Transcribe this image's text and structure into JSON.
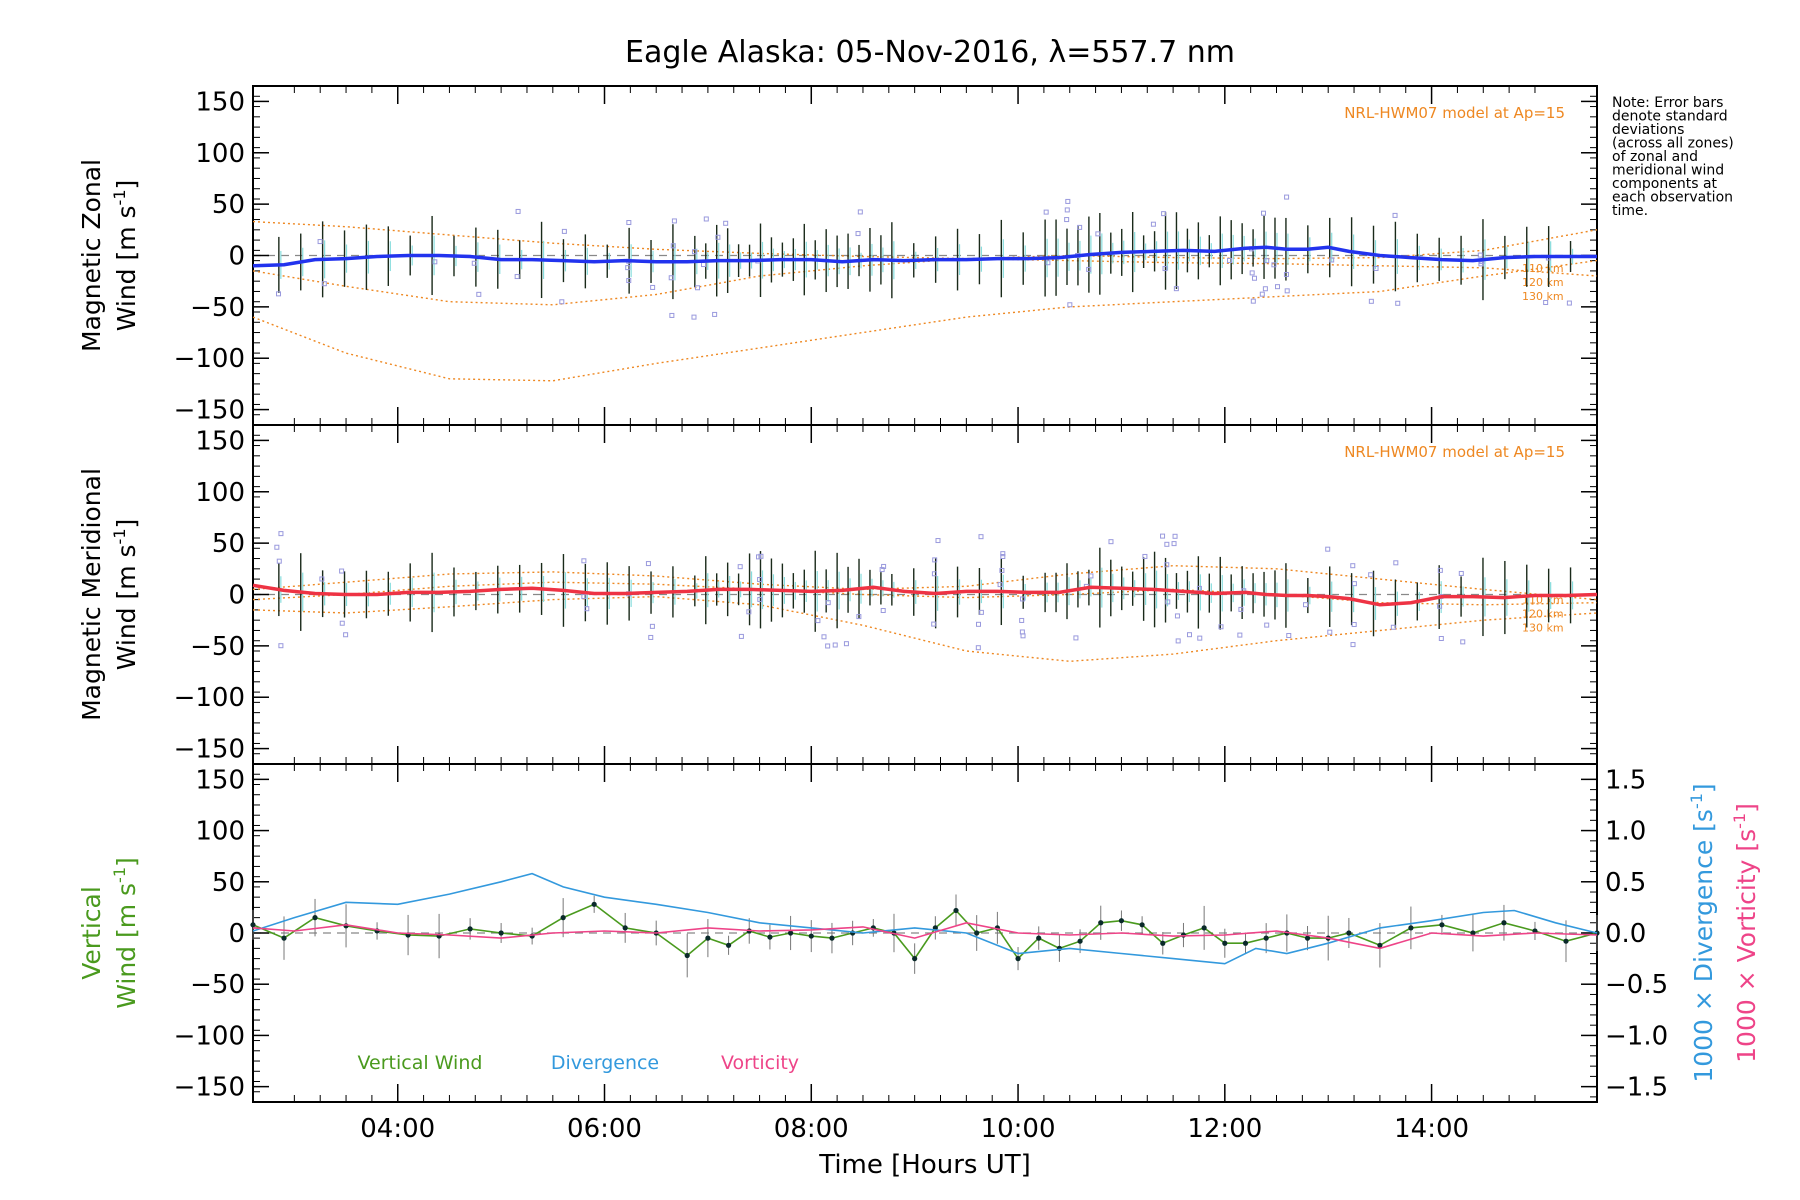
{
  "chart_data": [
    {
      "type": "line",
      "title": "Eagle Alaska: 05-Nov-2016, λ=557.7 nm",
      "panel": "zonal",
      "ylabel": [
        "Magnetic Zonal",
        "Wind [m s",
        "-1",
        "]"
      ],
      "ylim": [
        -165,
        165
      ],
      "yticks": [
        150,
        100,
        50,
        0,
        -50,
        -100,
        -150
      ],
      "xlim": [
        2.6,
        15.6
      ],
      "model_label": "NRL-HWM07 model at Ap=15",
      "altitude_labels": [
        "110 km",
        "120 km",
        "130 km"
      ],
      "series": [
        {
          "color": "#2233ee",
          "x": [
            2.6,
            2.9,
            3.2,
            3.5,
            3.8,
            4.1,
            4.4,
            4.7,
            5.0,
            5.3,
            5.6,
            5.9,
            6.2,
            6.5,
            6.8,
            7.1,
            7.4,
            7.7,
            8.0,
            8.3,
            8.6,
            8.9,
            9.2,
            9.5,
            9.8,
            10.1,
            10.4,
            10.7,
            11.0,
            11.3,
            11.6,
            11.9,
            12.2,
            12.4,
            12.6,
            12.8,
            13.0,
            13.2,
            13.5,
            13.8,
            14.1,
            14.4,
            14.7,
            15.0,
            15.3,
            15.6
          ],
          "y": [
            -10,
            -9,
            -4,
            -3,
            -1,
            0,
            0,
            -1,
            -4,
            -4,
            -5,
            -6,
            -5,
            -6,
            -6,
            -5,
            -5,
            -4,
            -4,
            -6,
            -4,
            -5,
            -4,
            -4,
            -3,
            -3,
            -2,
            1,
            3,
            4,
            5,
            4,
            7,
            8,
            6,
            6,
            8,
            4,
            0,
            -2,
            -4,
            -5,
            -2,
            -1,
            -1,
            -1
          ]
        }
      ],
      "model_curves": [
        {
          "name": "110 km",
          "x": [
            2.6,
            3.5,
            4.5,
            5.5,
            6.5,
            7.5,
            8.5,
            9.5,
            10.5,
            11.5,
            12.5,
            13.5,
            14.5,
            15.6
          ],
          "y": [
            33,
            28,
            20,
            12,
            6,
            2,
            -1,
            -3,
            -5,
            -7,
            -8,
            -10,
            -12,
            -20
          ]
        },
        {
          "name": "120 km",
          "x": [
            2.6,
            3.5,
            4.5,
            5.5,
            6.5,
            7.5,
            8.5,
            9.5,
            10.5,
            11.5,
            12.5,
            13.5,
            14.5,
            15.6
          ],
          "y": [
            -15,
            -30,
            -45,
            -48,
            -38,
            -20,
            -10,
            -3,
            0,
            -2,
            -3,
            -2,
            5,
            25
          ]
        },
        {
          "name": "130 km",
          "x": [
            2.6,
            3.5,
            4.5,
            5.5,
            6.5,
            7.5,
            8.5,
            9.5,
            10.5,
            11.5,
            12.5,
            13.5,
            14.5,
            15.6
          ],
          "y": [
            -60,
            -95,
            -120,
            -122,
            -105,
            -90,
            -75,
            -60,
            -50,
            -45,
            -40,
            -35,
            -20,
            -5
          ]
        }
      ]
    },
    {
      "type": "line",
      "panel": "meridional",
      "ylabel": [
        "Magnetic Meridional",
        "Wind [m s",
        "-1",
        "]"
      ],
      "ylim": [
        -165,
        165
      ],
      "yticks": [
        150,
        100,
        50,
        0,
        -50,
        -100,
        -150
      ],
      "xlim": [
        2.6,
        15.6
      ],
      "model_label": "NRL-HWM07 model at Ap=15",
      "altitude_labels": [
        "110 km",
        "120 km",
        "130 km"
      ],
      "series": [
        {
          "color": "#ee3344",
          "x": [
            2.6,
            2.9,
            3.2,
            3.5,
            3.8,
            4.1,
            4.4,
            4.7,
            5.0,
            5.3,
            5.6,
            5.9,
            6.2,
            6.5,
            6.8,
            7.1,
            7.4,
            7.7,
            8.0,
            8.3,
            8.6,
            8.9,
            9.2,
            9.5,
            9.8,
            10.1,
            10.4,
            10.7,
            11.0,
            11.3,
            11.6,
            11.9,
            12.2,
            12.4,
            12.6,
            12.8,
            13.0,
            13.2,
            13.5,
            13.8,
            14.1,
            14.4,
            14.7,
            15.0,
            15.3,
            15.6
          ],
          "y": [
            9,
            4,
            1,
            0,
            0,
            2,
            2,
            3,
            5,
            6,
            4,
            1,
            1,
            2,
            3,
            5,
            5,
            4,
            3,
            4,
            7,
            3,
            1,
            3,
            3,
            2,
            2,
            7,
            6,
            5,
            3,
            1,
            2,
            0,
            -1,
            -1,
            -2,
            -4,
            -10,
            -8,
            -2,
            -2,
            -3,
            -1,
            -1,
            0
          ]
        }
      ],
      "model_curves": [
        {
          "name": "110 km",
          "x": [
            2.6,
            3.5,
            4.5,
            5.5,
            6.5,
            7.5,
            8.5,
            9.5,
            10.5,
            11.5,
            12.5,
            13.5,
            14.5,
            15.6
          ],
          "y": [
            5,
            12,
            20,
            22,
            18,
            10,
            5,
            8,
            20,
            28,
            25,
            15,
            5,
            -5
          ]
        },
        {
          "name": "120 km",
          "x": [
            2.6,
            3.5,
            4.5,
            5.5,
            6.5,
            7.5,
            8.5,
            9.5,
            10.5,
            11.5,
            12.5,
            13.5,
            14.5,
            15.6
          ],
          "y": [
            -5,
            0,
            8,
            12,
            10,
            5,
            0,
            -3,
            0,
            5,
            0,
            -8,
            -10,
            -8
          ]
        },
        {
          "name": "130 km",
          "x": [
            2.6,
            3.5,
            4.5,
            5.5,
            6.5,
            7.5,
            8.5,
            9.5,
            10.5,
            11.5,
            12.5,
            13.5,
            14.5,
            15.6
          ],
          "y": [
            -15,
            -18,
            -12,
            -5,
            -2,
            -10,
            -30,
            -55,
            -65,
            -58,
            -45,
            -35,
            -25,
            -18
          ]
        }
      ]
    },
    {
      "type": "line",
      "panel": "vertical",
      "ylabel_left": [
        "Vertical",
        "Wind [m s",
        "-1",
        "]"
      ],
      "ylabel_right_div": [
        "1000 × Divergence [s",
        "-1",
        "]"
      ],
      "ylabel_right_vort": [
        "1000 × Vorticity [s",
        "-1",
        "]"
      ],
      "xlabel": "Time [Hours UT]",
      "ylim": [
        -165,
        165
      ],
      "yticks": [
        150,
        100,
        50,
        0,
        -50,
        -100,
        -150
      ],
      "y2lim": [
        -1.65,
        1.65
      ],
      "y2ticks": [
        "1.5",
        "1.0",
        "0.5",
        "0.0",
        "−0.5",
        "−1.0",
        "−1.5"
      ],
      "y2tick_values": [
        1.5,
        1.0,
        0.5,
        0.0,
        -0.5,
        -1.0,
        -1.5
      ],
      "xlim": [
        2.6,
        15.6
      ],
      "xticks": [
        "04:00",
        "06:00",
        "08:00",
        "10:00",
        "12:00",
        "14:00"
      ],
      "xtick_values": [
        4,
        6,
        8,
        10,
        12,
        14
      ],
      "legend": [
        "Vertical Wind",
        "Divergence",
        "Vorticity"
      ],
      "series": [
        {
          "name": "Vertical Wind",
          "color": "#4a9a1e",
          "x": [
            2.6,
            2.9,
            3.2,
            3.5,
            3.8,
            4.1,
            4.4,
            4.7,
            5.0,
            5.3,
            5.6,
            5.9,
            6.2,
            6.5,
            6.8,
            7.0,
            7.2,
            7.4,
            7.6,
            7.8,
            8.0,
            8.2,
            8.4,
            8.6,
            8.8,
            9.0,
            9.2,
            9.4,
            9.6,
            9.8,
            10.0,
            10.2,
            10.4,
            10.6,
            10.8,
            11.0,
            11.2,
            11.4,
            11.6,
            11.8,
            12.0,
            12.2,
            12.4,
            12.6,
            12.8,
            13.0,
            13.2,
            13.5,
            13.8,
            14.1,
            14.4,
            14.7,
            15.0,
            15.3,
            15.6
          ],
          "y": [
            8,
            -5,
            15,
            7,
            2,
            -2,
            -3,
            4,
            0,
            -3,
            15,
            28,
            5,
            0,
            -22,
            -5,
            -12,
            2,
            -4,
            0,
            -3,
            -5,
            0,
            5,
            0,
            -25,
            5,
            22,
            0,
            5,
            -25,
            -5,
            -15,
            -8,
            10,
            12,
            8,
            -10,
            -2,
            5,
            -10,
            -10,
            -5,
            0,
            -5,
            -5,
            0,
            -12,
            5,
            8,
            0,
            10,
            2,
            -8,
            0
          ]
        },
        {
          "name": "Divergence",
          "color": "#3399dd",
          "x": [
            2.6,
            3.0,
            3.5,
            4.0,
            4.5,
            5.0,
            5.3,
            5.6,
            6.0,
            6.5,
            7.0,
            7.5,
            8.0,
            8.5,
            9.0,
            9.5,
            10.0,
            10.5,
            11.0,
            11.5,
            12.0,
            12.3,
            12.6,
            13.0,
            13.5,
            14.0,
            14.5,
            14.8,
            15.2,
            15.6
          ],
          "y": [
            0.02,
            0.15,
            0.3,
            0.28,
            0.38,
            0.5,
            0.58,
            0.45,
            0.35,
            0.28,
            0.2,
            0.1,
            0.05,
            0.0,
            0.05,
            0.0,
            -0.2,
            -0.15,
            -0.2,
            -0.25,
            -0.3,
            -0.15,
            -0.2,
            -0.1,
            0.05,
            0.12,
            0.2,
            0.22,
            0.1,
            0.0
          ]
        },
        {
          "name": "Vorticity",
          "color": "#ee4488",
          "x": [
            2.6,
            3.0,
            3.5,
            4.0,
            4.5,
            5.0,
            5.5,
            6.0,
            6.5,
            7.0,
            7.5,
            8.0,
            8.5,
            9.0,
            9.5,
            10.0,
            10.5,
            11.0,
            11.5,
            12.0,
            12.5,
            13.0,
            13.5,
            14.0,
            14.5,
            15.0,
            15.6
          ],
          "y": [
            0.05,
            0.02,
            0.08,
            0.0,
            -0.02,
            -0.05,
            0.0,
            0.02,
            0.0,
            0.05,
            0.02,
            0.03,
            0.06,
            -0.05,
            0.1,
            0.0,
            -0.02,
            0.0,
            -0.03,
            -0.02,
            0.02,
            -0.05,
            -0.15,
            0.0,
            -0.03,
            0.0,
            -0.02
          ]
        }
      ]
    }
  ],
  "note": [
    "Note: Error bars",
    "denote standard",
    "deviations",
    "(across all zones)",
    "of zonal and",
    "meridional wind",
    "components at",
    "each observation",
    "time."
  ],
  "colors": {
    "axis": "#000000",
    "model": "#ee8822",
    "scatter": "#9999dd",
    "cyan": "#88dddd",
    "zero_line": "#888888"
  }
}
